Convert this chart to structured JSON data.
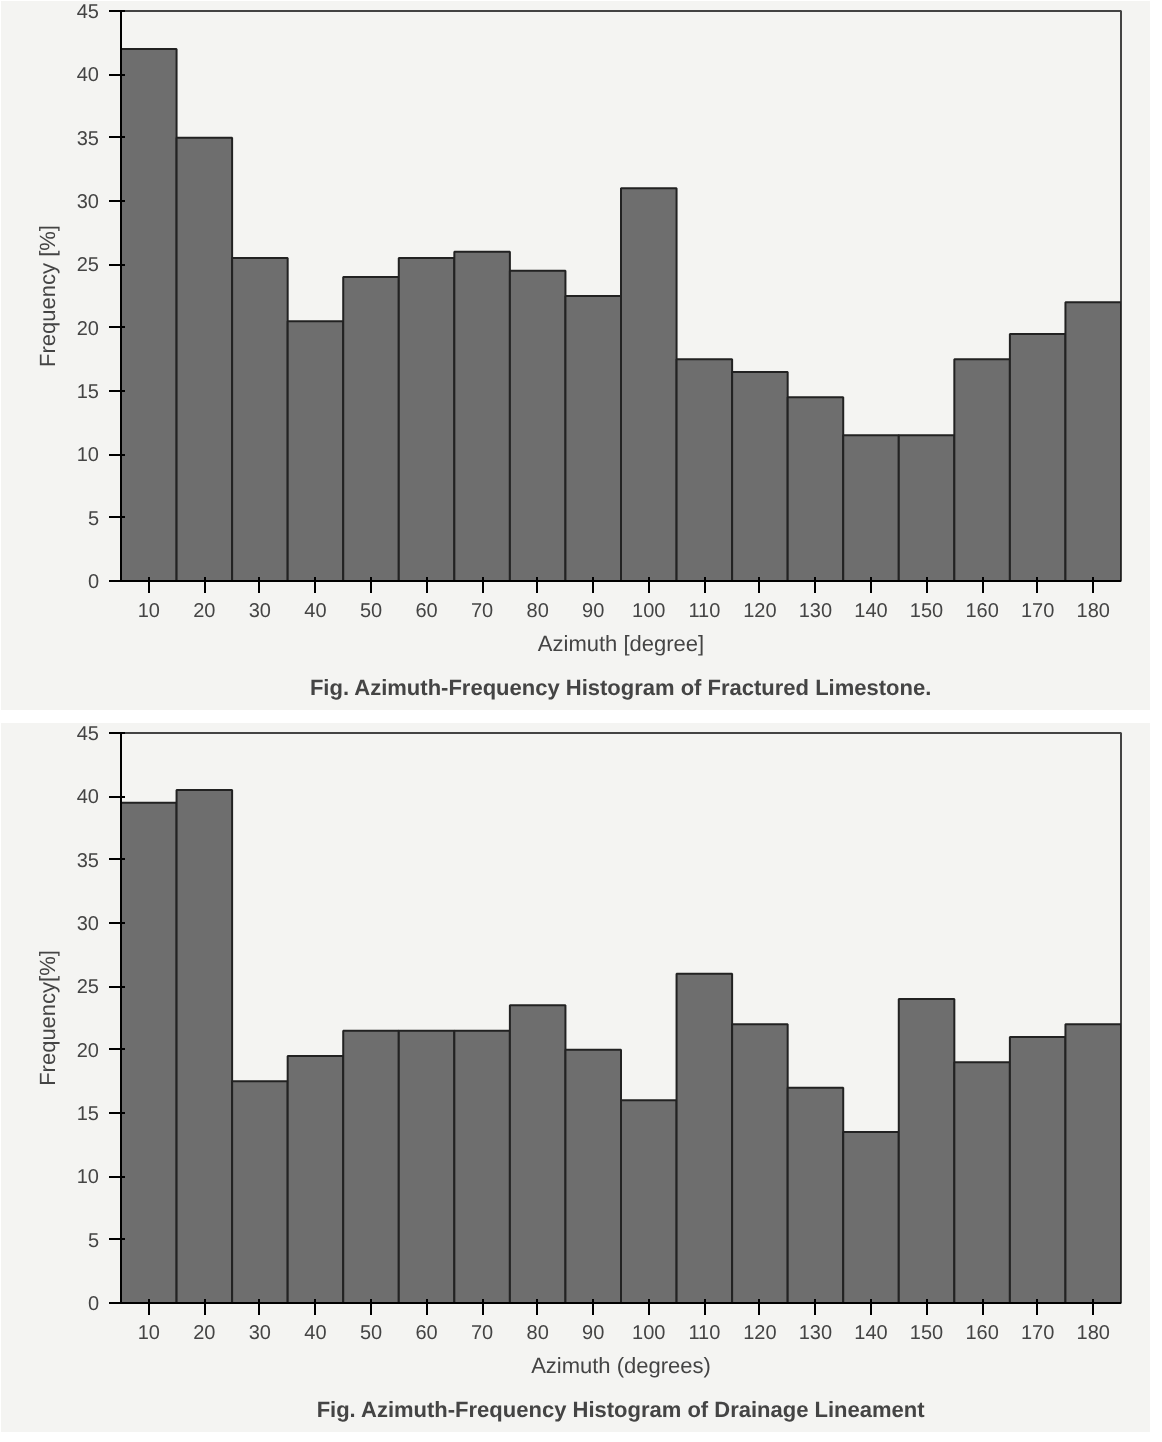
{
  "chart_data": [
    {
      "type": "bar",
      "categories": [
        "10",
        "20",
        "30",
        "40",
        "50",
        "60",
        "70",
        "80",
        "90",
        "100",
        "110",
        "120",
        "130",
        "140",
        "150",
        "160",
        "170",
        "180"
      ],
      "values": [
        42,
        35,
        25.5,
        20.5,
        24,
        25.5,
        26,
        24.5,
        22.5,
        31,
        17.5,
        16.5,
        14.5,
        11.5,
        11.5,
        17.5,
        19.5,
        22
      ],
      "color": "#6e6e6e",
      "xlabel": "Azimuth [degree]",
      "ylabel": "Frequency [%]",
      "ylim": [
        0,
        45
      ],
      "yticks": [
        0,
        5,
        10,
        15,
        20,
        25,
        30,
        35,
        40,
        45
      ],
      "grid": false,
      "annotations": [
        "Fig. Azimuth-Frequency Histogram of Fractured Limestone."
      ]
    },
    {
      "type": "bar",
      "categories": [
        "10",
        "20",
        "30",
        "40",
        "50",
        "60",
        "70",
        "80",
        "90",
        "100",
        "110",
        "120",
        "130",
        "140",
        "150",
        "160",
        "170",
        "180"
      ],
      "values": [
        39.5,
        40.5,
        17.5,
        19.5,
        21.5,
        21.5,
        21.5,
        23.5,
        20,
        16,
        26,
        22,
        17,
        13.5,
        24,
        19,
        21,
        22
      ],
      "color": "#6e6e6e",
      "xlabel": "Azimuth (degrees)",
      "ylabel": "Frequency[%]",
      "ylim": [
        0,
        45
      ],
      "yticks": [
        0,
        5,
        10,
        15,
        20,
        25,
        30,
        35,
        40,
        45
      ],
      "grid": false,
      "annotations": [
        "Fig. Azimuth-Frequency Histogram of Drainage Lineament"
      ]
    }
  ]
}
